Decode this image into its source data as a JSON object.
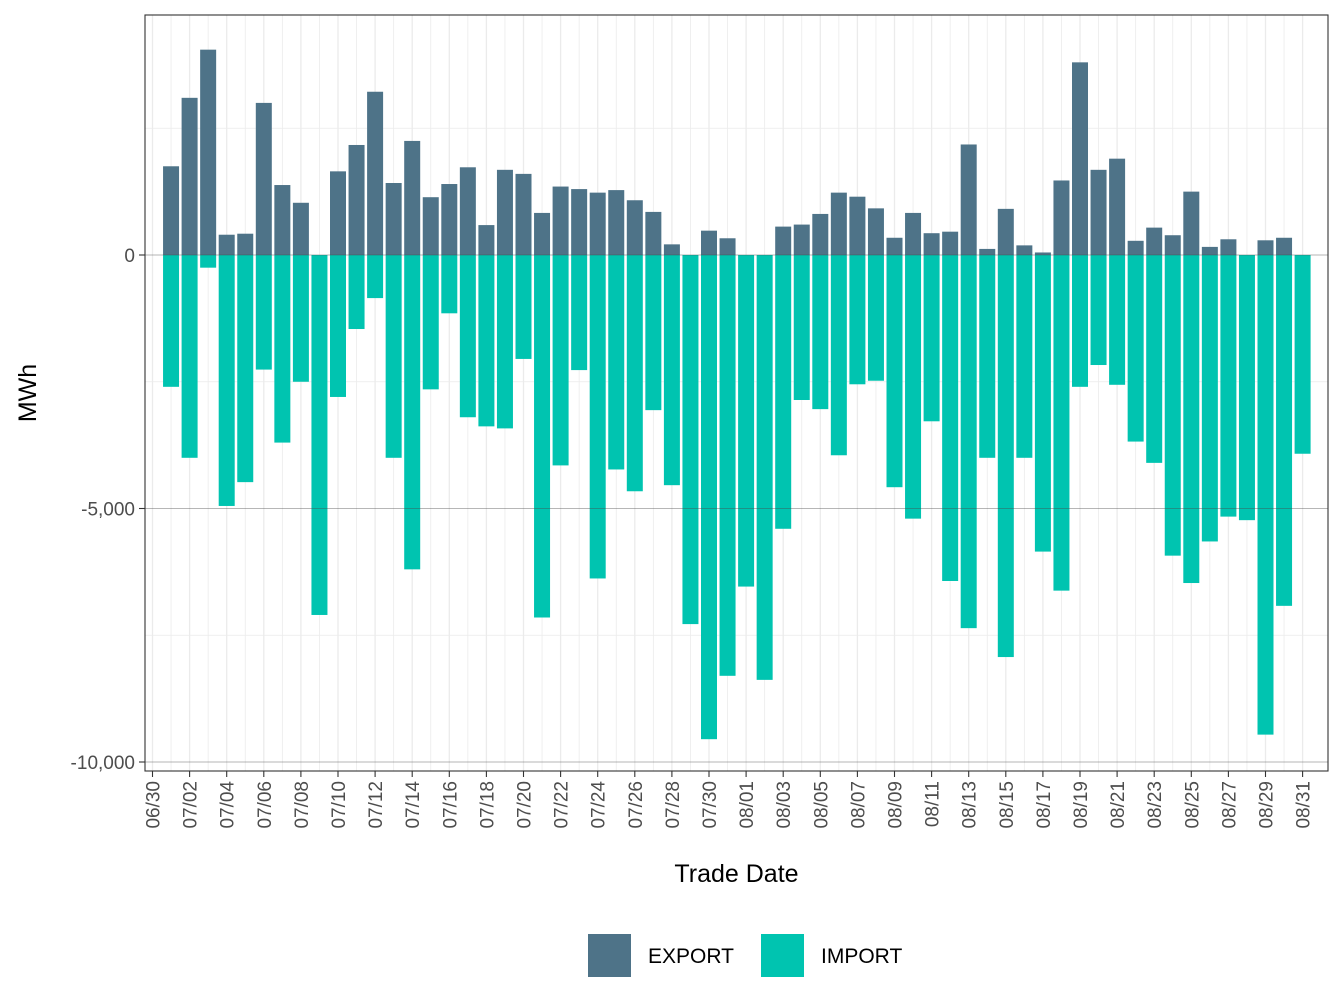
{
  "chart_data": {
    "type": "bar",
    "title": "",
    "xlabel": "Trade Date",
    "ylabel": "MWh",
    "ylim": [
      -10000,
      4500
    ],
    "yticks": [
      0,
      -5000,
      -10000
    ],
    "ytick_labels": [
      "0",
      "-5,000",
      "-10,000"
    ],
    "categories": [
      "06/30",
      "07/01",
      "07/02",
      "07/03",
      "07/04",
      "07/05",
      "07/06",
      "07/07",
      "07/08",
      "07/09",
      "07/10",
      "07/11",
      "07/12",
      "07/13",
      "07/14",
      "07/15",
      "07/16",
      "07/17",
      "07/18",
      "07/19",
      "07/20",
      "07/21",
      "07/22",
      "07/23",
      "07/24",
      "07/25",
      "07/26",
      "07/27",
      "07/28",
      "07/29",
      "07/30",
      "07/31",
      "08/01",
      "08/02",
      "08/03",
      "08/04",
      "08/05",
      "08/06",
      "08/07",
      "08/08",
      "08/09",
      "08/10",
      "08/11",
      "08/12",
      "08/13",
      "08/14",
      "08/15",
      "08/16",
      "08/17",
      "08/18",
      "08/19",
      "08/20",
      "08/21",
      "08/22",
      "08/23",
      "08/24",
      "08/25",
      "08/26",
      "08/27",
      "08/28",
      "08/29",
      "08/30",
      "08/31"
    ],
    "xtick_labels": [
      "06/30",
      "07/02",
      "07/04",
      "07/06",
      "07/08",
      "07/10",
      "07/12",
      "07/14",
      "07/16",
      "07/18",
      "07/20",
      "07/22",
      "07/24",
      "07/26",
      "07/28",
      "07/30",
      "08/01",
      "08/03",
      "08/05",
      "08/07",
      "08/09",
      "08/11",
      "08/13",
      "08/15",
      "08/17",
      "08/19",
      "08/21",
      "08/23",
      "08/25",
      "08/27",
      "08/29",
      "08/31"
    ],
    "series": [
      {
        "name": "EXPORT",
        "color": "#4e7388",
        "values": [
          0,
          1750,
          3100,
          4050,
          400,
          420,
          3000,
          1380,
          1030,
          0,
          1650,
          2170,
          3220,
          1420,
          2250,
          1140,
          1400,
          1730,
          590,
          1680,
          1600,
          830,
          1350,
          1300,
          1230,
          1280,
          1080,
          850,
          210,
          0,
          480,
          330,
          0,
          0,
          560,
          600,
          810,
          1230,
          1150,
          920,
          340,
          830,
          430,
          460,
          2180,
          120,
          910,
          190,
          50,
          1470,
          3800,
          1680,
          1900,
          280,
          540,
          390,
          1250,
          160,
          310,
          0,
          290,
          340,
          0
        ]
      },
      {
        "name": "IMPORT",
        "color": "#00c4b0",
        "values": [
          0,
          -2600,
          -4000,
          -250,
          -4950,
          -4480,
          -2260,
          -3700,
          -2500,
          -7100,
          -2800,
          -1460,
          -850,
          -4000,
          -6200,
          -2650,
          -1150,
          -3200,
          -3380,
          -3420,
          -2050,
          -7150,
          -4150,
          -2270,
          -6380,
          -4230,
          -4660,
          -3060,
          -4540,
          -7280,
          -9550,
          -8300,
          -6540,
          -8380,
          -5400,
          -2860,
          -3040,
          -3950,
          -2550,
          -2480,
          -4580,
          -5200,
          -3280,
          -6430,
          -7360,
          -4000,
          -7930,
          -4000,
          -5850,
          -6620,
          -2600,
          -2170,
          -2560,
          -3680,
          -4100,
          -5930,
          -6470,
          -5650,
          -5160,
          -5230,
          -9460,
          -6920,
          -3920
        ]
      }
    ],
    "legend": {
      "position": "bottom",
      "items": [
        "EXPORT",
        "IMPORT"
      ]
    },
    "grid": true
  }
}
